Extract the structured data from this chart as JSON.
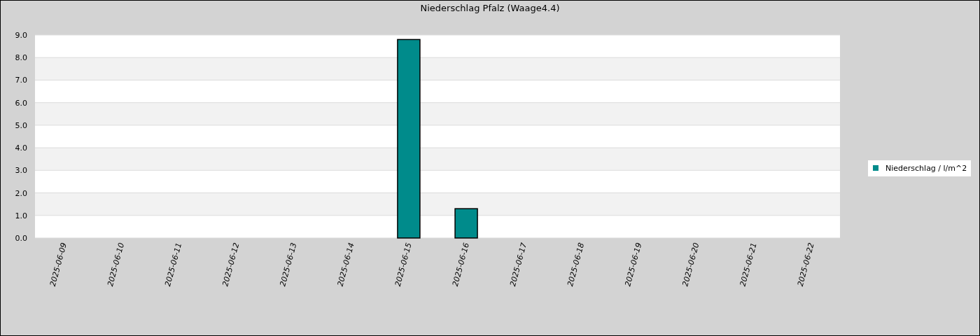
{
  "chart_data": {
    "type": "bar",
    "title": "Niederschlag Pfalz (Waage4.4)",
    "categories": [
      "2025-06-09",
      "2025-06-10",
      "2025-06-11",
      "2025-06-12",
      "2025-06-13",
      "2025-06-14",
      "2025-06-15",
      "2025-06-16",
      "2025-06-17",
      "2025-06-18",
      "2025-06-19",
      "2025-06-20",
      "2025-06-21",
      "2025-06-22"
    ],
    "series": [
      {
        "name": "Niederschlag / l/m^2",
        "color": "#008b8b",
        "values": [
          0,
          0,
          0,
          0,
          0,
          0,
          8.8,
          1.3,
          0,
          0,
          0,
          0,
          0,
          0
        ]
      }
    ],
    "ylim": [
      0,
      9
    ],
    "yticks": [
      {
        "value": 0,
        "label": "0.0"
      },
      {
        "value": 1,
        "label": "1.0"
      },
      {
        "value": 2,
        "label": "2.0"
      },
      {
        "value": 3,
        "label": "3.0"
      },
      {
        "value": 4,
        "label": "4.0"
      },
      {
        "value": 5,
        "label": "5.0"
      },
      {
        "value": 6,
        "label": "6.0"
      },
      {
        "value": 7,
        "label": "7.0"
      },
      {
        "value": 8,
        "label": "8.0"
      },
      {
        "value": 9,
        "label": "9.0"
      }
    ],
    "grid": "y",
    "legend": "right"
  }
}
